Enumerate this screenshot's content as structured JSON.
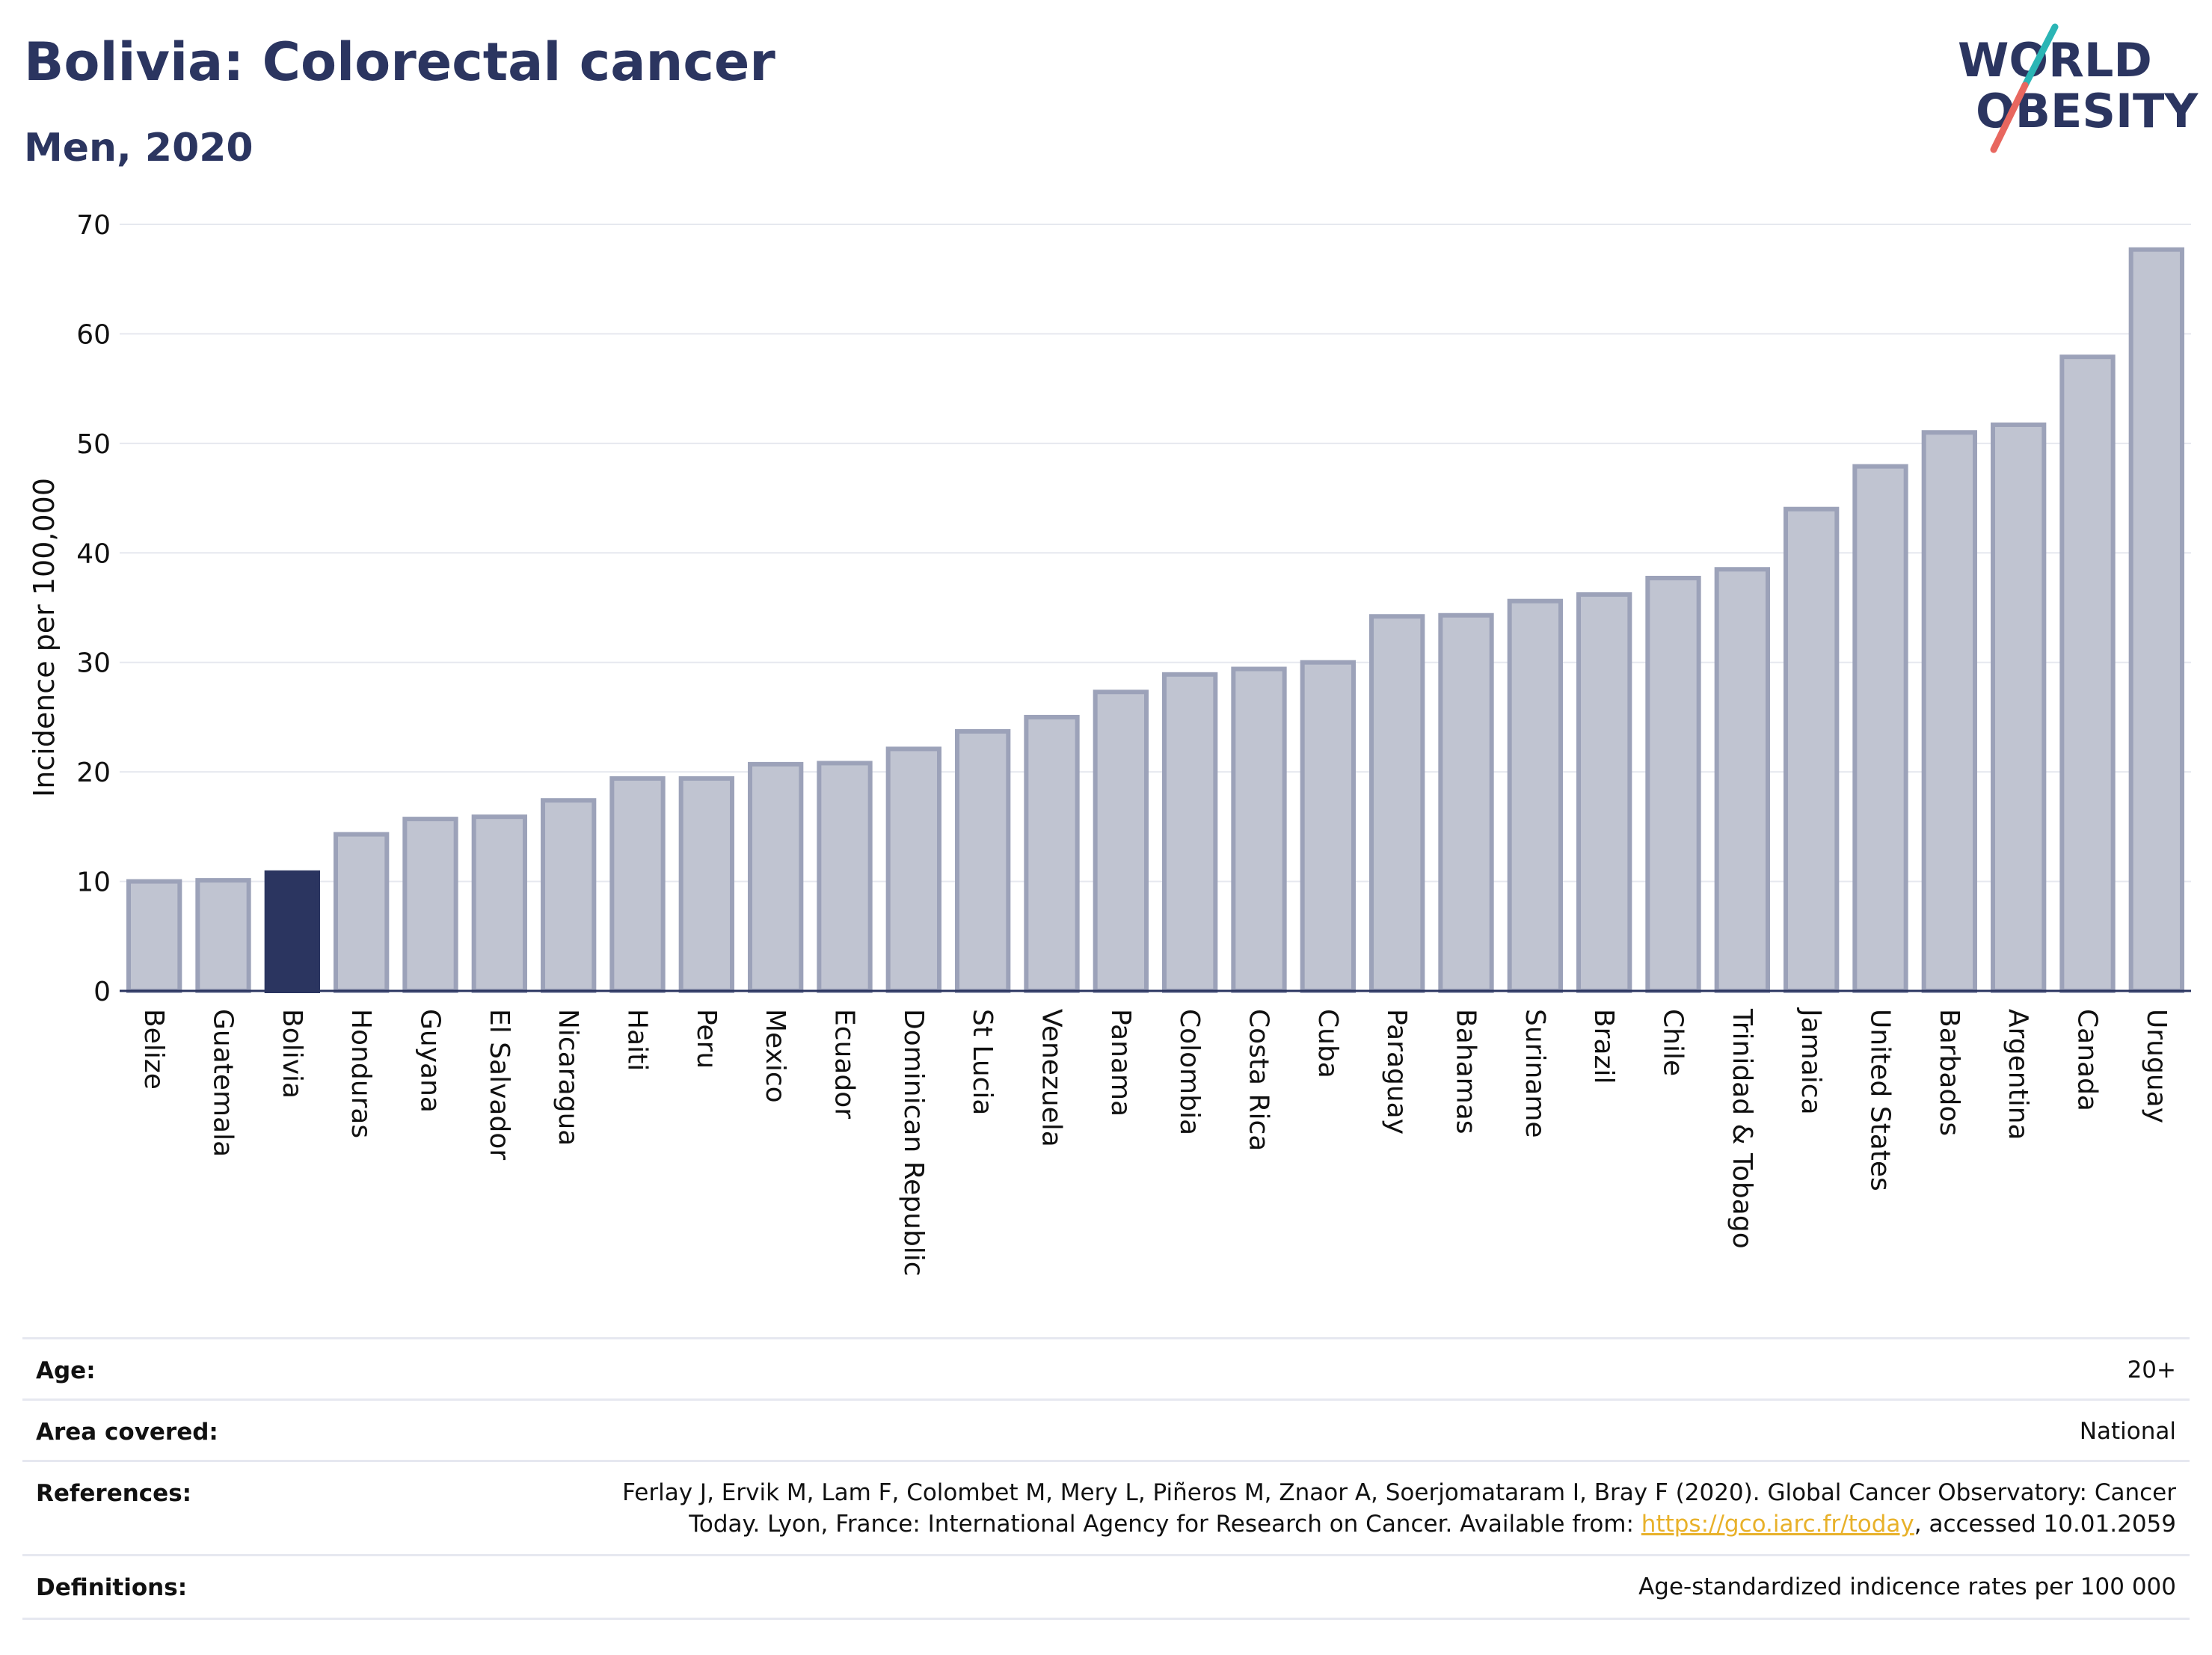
{
  "header": {
    "title": "Bolivia: Colorectal cancer",
    "subtitle": "Men, 2020",
    "logo_line1": "WORLD",
    "logo_line2": "OBESITY"
  },
  "colors": {
    "highlight": "#2b3560",
    "bar_fill": "#c0c4d1",
    "bar_stroke": "#9ca2b9",
    "grid": "#e6e8ef",
    "logo_teal": "#2bb5b5",
    "logo_red": "#e8675f"
  },
  "chart_data": {
    "type": "bar",
    "ylabel": "Incidence per 100,000",
    "ylim": [
      0,
      70
    ],
    "yticks": [
      0,
      10,
      20,
      30,
      40,
      50,
      60,
      70
    ],
    "grid": true,
    "highlight_category": "Bolivia",
    "categories": [
      "Belize",
      "Guatemala",
      "Bolivia",
      "Honduras",
      "Guyana",
      "El Salvador",
      "Nicaragua",
      "Haiti",
      "Peru",
      "Mexico",
      "Ecuador",
      "Dominican Republic",
      "St Lucia",
      "Venezuela",
      "Panama",
      "Colombia",
      "Costa Rica",
      "Cuba",
      "Paraguay",
      "Bahamas",
      "Suriname",
      "Brazil",
      "Chile",
      "Trinidad & Tobago",
      "Jamaica",
      "United States",
      "Barbados",
      "Argentina",
      "Canada",
      "Uruguay"
    ],
    "values": [
      10.0,
      10.1,
      10.8,
      14.3,
      15.7,
      15.9,
      17.4,
      19.4,
      19.4,
      20.7,
      20.8,
      22.1,
      23.7,
      25.0,
      27.3,
      28.9,
      29.4,
      30.0,
      34.2,
      34.3,
      35.6,
      36.2,
      37.7,
      38.5,
      44.0,
      47.9,
      51.0,
      51.7,
      57.9,
      67.7
    ]
  },
  "info": {
    "age_label": "Age:",
    "age_value": "20+",
    "area_label": "Area covered:",
    "area_value": "National",
    "references_label": "References:",
    "references_line1": "Ferlay J, Ervik M, Lam F, Colombet M, Mery L, Piñeros M, Znaor A, Soerjomataram I, Bray F (2020). Global Cancer Observatory: Cancer",
    "references_line2_pre": "Today. Lyon, France: International Agency for Research on Cancer. Available from: ",
    "references_link": "https://gco.iarc.fr/today",
    "references_line2_post": ", accessed 10.01.2059",
    "definitions_label": "Definitions:",
    "definitions_value": "Age-standardized indicence rates per 100 000"
  }
}
